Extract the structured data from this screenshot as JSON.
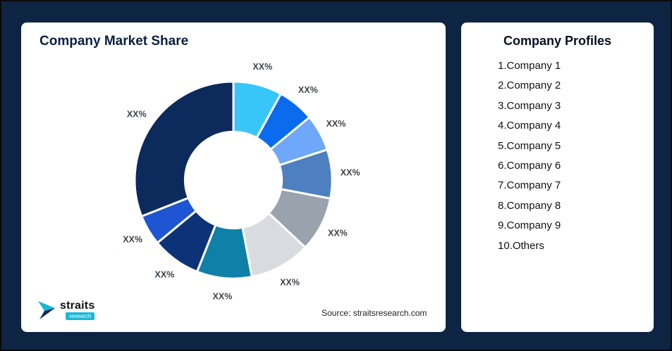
{
  "page": {
    "background_color": "#0e2443"
  },
  "left_card": {
    "title": "Company Market Share",
    "source": "Source: straitsresearch.com"
  },
  "logo": {
    "name": "straits",
    "sub": "research",
    "accent_color": "#17b8d6",
    "navy_color": "#0e2a5a"
  },
  "right_card": {
    "title": "Company Profiles",
    "items": [
      "1.Company 1",
      "2.Company 2",
      "3.Company 3",
      "4.Company 4",
      "5.Company 5",
      "6.Company 6",
      "7.Company 7",
      "8.Company 8",
      "9.Company 9",
      "10.Others"
    ]
  },
  "chart_data": {
    "type": "pie",
    "subtype": "donut",
    "title": "Company Market Share",
    "labels": [
      "Company 1",
      "Company 2",
      "Company 3",
      "Company 4",
      "Company 5",
      "Company 6",
      "Company 7",
      "Company 8",
      "Company 9",
      "Others"
    ],
    "displayed_value_labels": [
      "XX%",
      "XX%",
      "XX%",
      "XX%",
      "XX%",
      "XX%",
      "XX%",
      "XX%",
      "XX%",
      "XX%"
    ],
    "values_pct_estimated": [
      8,
      6,
      6,
      8,
      9,
      10,
      9,
      8,
      5,
      31
    ],
    "colors": [
      "#38C6F8",
      "#0A6BEF",
      "#6FA7FA",
      "#4E7FC1",
      "#99A2AD",
      "#D8DCE1",
      "#0F80A7",
      "#0C3378",
      "#1E55D3",
      "#0C2A5B"
    ],
    "start_angle_deg": -90,
    "direction": "clockwise",
    "inner_radius_ratio": 0.49,
    "slice_gap_stroke": "#ffffff",
    "legend": "none",
    "source": "Source: straitsresearch.com"
  }
}
